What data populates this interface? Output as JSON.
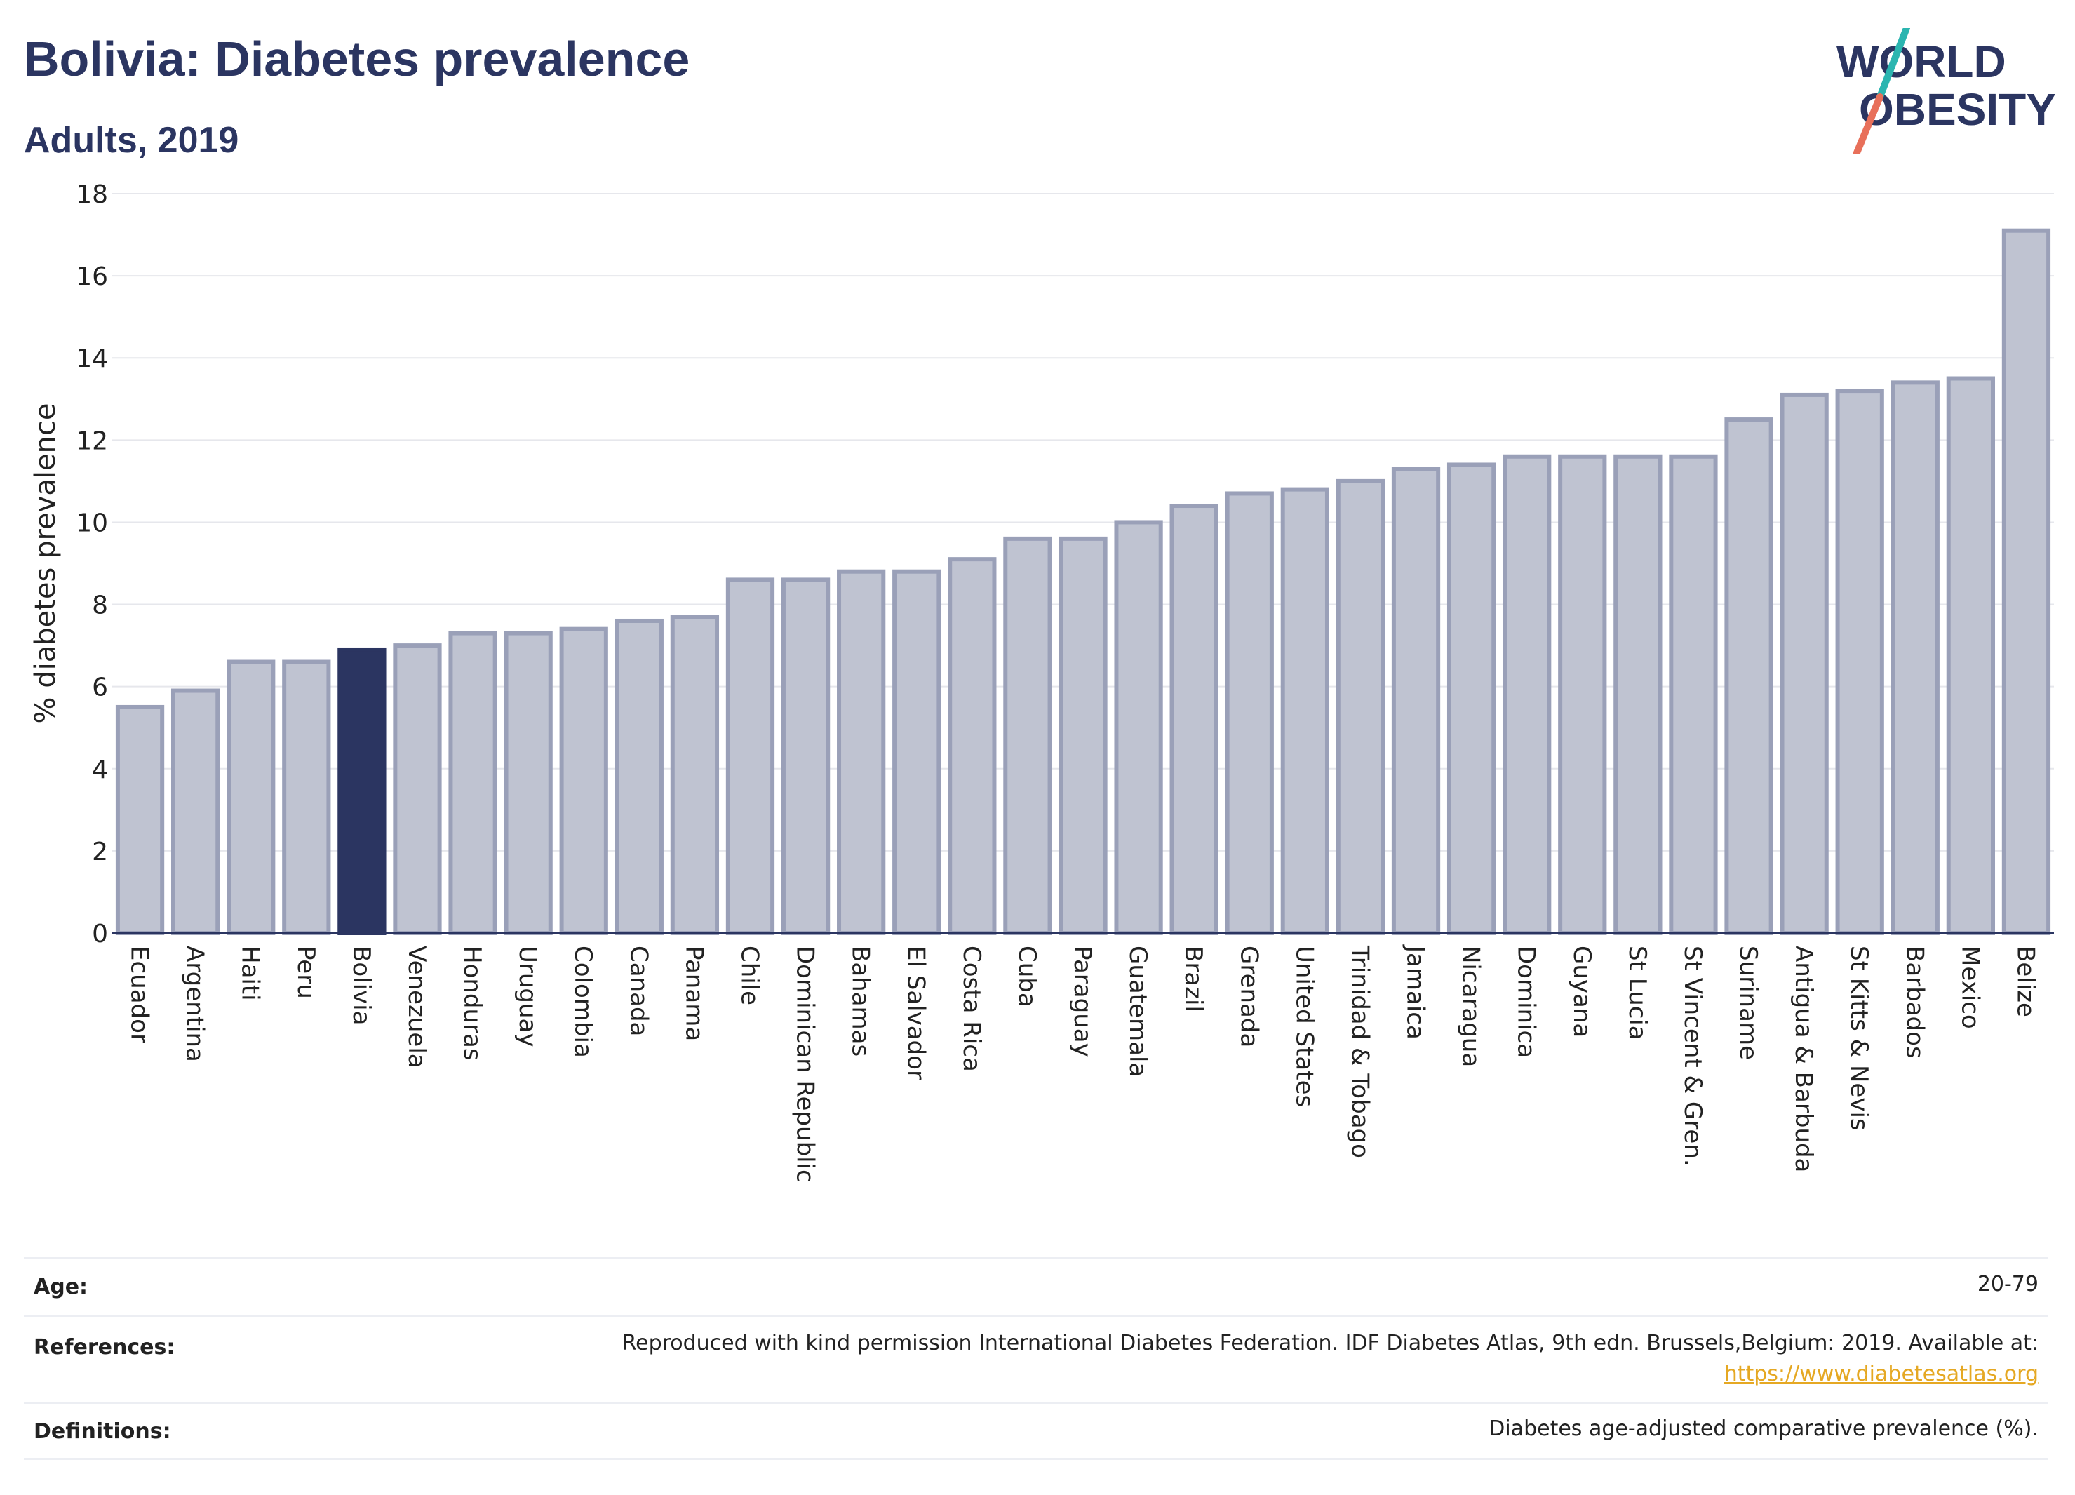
{
  "header": {
    "title": "Bolivia: Diabetes prevalence",
    "subtitle": "Adults, 2019",
    "logo_line1": "WORLD",
    "logo_line2": "OBESITY"
  },
  "colors": {
    "title": "#2b3561",
    "bar": "#bfc3d1",
    "bar_stroke": "#9aa0b8",
    "highlight": "#2b3561",
    "logo_teal": "#2bb5b0",
    "logo_coral": "#e8705a",
    "link": "#e5a823"
  },
  "chart_data": {
    "type": "bar",
    "ylabel": "% diabetes prevalence",
    "ylim": [
      0,
      18
    ],
    "yticks": [
      0,
      2,
      4,
      6,
      8,
      10,
      12,
      14,
      16,
      18
    ],
    "grid": true,
    "highlight": "Bolivia",
    "categories": [
      "Ecuador",
      "Argentina",
      "Haiti",
      "Peru",
      "Bolivia",
      "Venezuela",
      "Honduras",
      "Uruguay",
      "Colombia",
      "Canada",
      "Panama",
      "Chile",
      "Dominican Republic",
      "Bahamas",
      "El Salvador",
      "Costa Rica",
      "Cuba",
      "Paraguay",
      "Guatemala",
      "Brazil",
      "Grenada",
      "United States",
      "Trinidad & Tobago",
      "Jamaica",
      "Nicaragua",
      "Dominica",
      "Guyana",
      "St Lucia",
      "St Vincent & Gren.",
      "Suriname",
      "Antigua & Barbuda",
      "St Kitts & Nevis",
      "Barbados",
      "Mexico",
      "Belize"
    ],
    "values": [
      5.5,
      5.9,
      6.6,
      6.6,
      6.9,
      7.0,
      7.3,
      7.3,
      7.4,
      7.6,
      7.7,
      8.6,
      8.6,
      8.8,
      8.8,
      9.1,
      9.6,
      9.6,
      10.0,
      10.4,
      10.7,
      10.8,
      11.0,
      11.3,
      11.4,
      11.6,
      11.6,
      11.6,
      11.6,
      12.5,
      13.1,
      13.2,
      13.4,
      13.5,
      17.1
    ]
  },
  "info": {
    "age_label": "Age:",
    "age_value": "20-79",
    "references_label": "References:",
    "references_text": "Reproduced with kind permission International Diabetes Federation. IDF Diabetes Atlas, 9th edn. Brussels,Belgium: 2019. Available at:",
    "references_link": "https://www.diabetesatlas.org",
    "definitions_label": "Definitions:",
    "definitions_text": "Diabetes age-adjusted comparative prevalence (%)."
  }
}
